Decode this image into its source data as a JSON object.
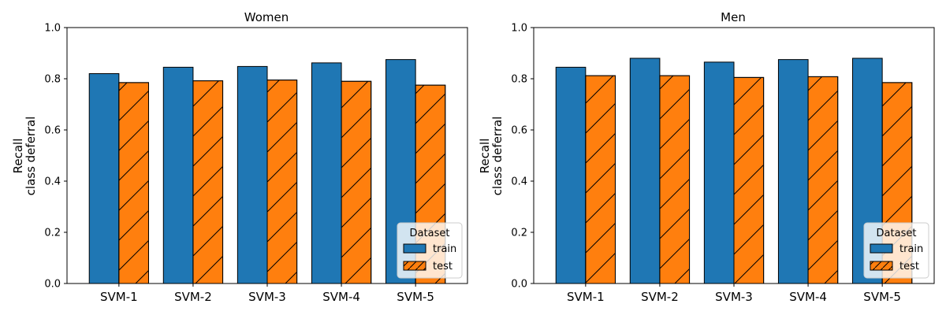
{
  "chart_data": [
    {
      "type": "bar",
      "title": "Women",
      "ylabel_lines": [
        "Recall",
        "class deferral"
      ],
      "xlabel": "",
      "categories": [
        "SVM-1",
        "SVM-2",
        "SVM-3",
        "SVM-4",
        "SVM-5"
      ],
      "series": [
        {
          "name": "train",
          "values": [
            0.82,
            0.845,
            0.848,
            0.862,
            0.875
          ]
        },
        {
          "name": "test",
          "values": [
            0.785,
            0.792,
            0.795,
            0.79,
            0.775
          ]
        }
      ],
      "ylim": [
        0,
        1.0
      ],
      "yticks": [
        "0.0",
        "0.2",
        "0.4",
        "0.6",
        "0.8",
        "1.0"
      ],
      "grid": false,
      "legend": {
        "title": "Dataset",
        "position": "lower-right"
      }
    },
    {
      "type": "bar",
      "title": "Men",
      "ylabel_lines": [
        "Recall",
        "class deferral"
      ],
      "xlabel": "",
      "categories": [
        "SVM-1",
        "SVM-2",
        "SVM-3",
        "SVM-4",
        "SVM-5"
      ],
      "series": [
        {
          "name": "train",
          "values": [
            0.845,
            0.88,
            0.865,
            0.875,
            0.88
          ]
        },
        {
          "name": "test",
          "values": [
            0.812,
            0.812,
            0.805,
            0.808,
            0.785
          ]
        }
      ],
      "ylim": [
        0,
        1.0
      ],
      "yticks": [
        "0.0",
        "0.2",
        "0.4",
        "0.6",
        "0.8",
        "1.0"
      ],
      "grid": false,
      "legend": {
        "title": "Dataset",
        "position": "lower-right"
      }
    }
  ],
  "colors": {
    "train": "#1f77b4",
    "test": "#ff7f0e",
    "edge": "#000000"
  }
}
